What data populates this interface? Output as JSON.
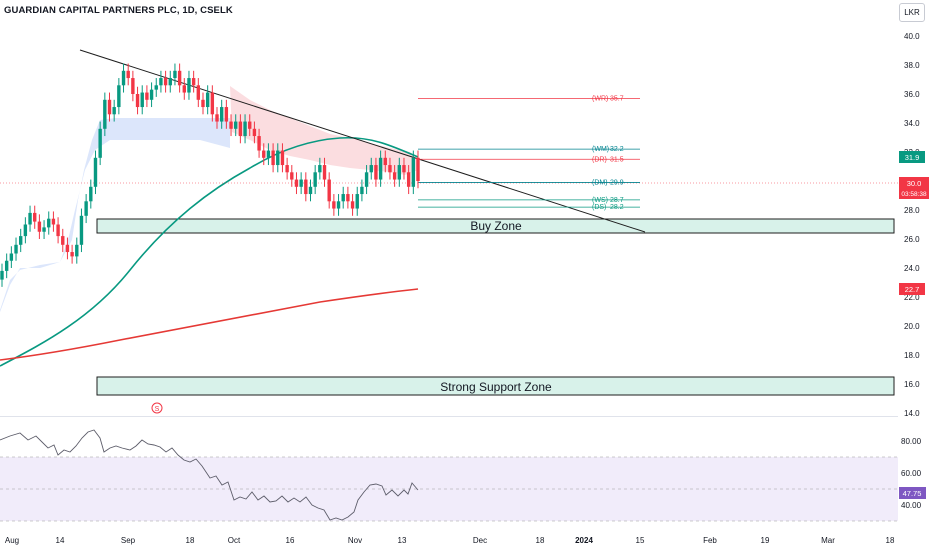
{
  "header": {
    "symbol_title": "GUARDIAN CAPITAL PARTNERS PLC, 1D, CSELK",
    "currency": "LKR"
  },
  "price_axis": {
    "ticks": [
      "40.0",
      "38.0",
      "36.0",
      "34.0",
      "32.0",
      "30.0",
      "28.0",
      "26.0",
      "24.0",
      "22.0",
      "20.0",
      "18.0",
      "16.0",
      "14.0"
    ],
    "last_price_badge": "31.9",
    "current_price_badge": "30.0",
    "countdown_badge": "03:58:38",
    "ma_badge": "22.7",
    "last_price_color": "#089981",
    "current_price_color": "#f23645",
    "ma_color": "#f23645"
  },
  "rsi_axis": {
    "ticks": [
      "80.00",
      "60.00",
      "40.00"
    ],
    "value_badge": "47.75",
    "badge_color": "#7e57c2"
  },
  "time_axis": {
    "ticks": [
      "Aug",
      "14",
      "Sep",
      "18",
      "Oct",
      "16",
      "Nov",
      "13",
      "Dec",
      "18",
      "2024",
      "15",
      "Feb",
      "19",
      "Mar",
      "18"
    ]
  },
  "zones": {
    "buy_zone": "Buy Zone",
    "support_zone": "Strong Support Zone",
    "fill_color": "#d8f2ea",
    "border_color": "#1e1e1e"
  },
  "levels": [
    {
      "tag": "(WR)",
      "value": "35.7",
      "color": "#f23645",
      "price": 35.7
    },
    {
      "tag": "(WM)",
      "value": "32.2",
      "color": "#00838f",
      "price": 32.2
    },
    {
      "tag": "(DR)",
      "value": "31.5",
      "color": "#f23645",
      "price": 31.5
    },
    {
      "tag": "(DM)",
      "value": "29.9",
      "color": "#00838f",
      "price": 29.9
    },
    {
      "tag": "(WS)",
      "value": "28.7",
      "color": "#089981",
      "price": 28.7
    },
    {
      "tag": "(DS)",
      "value": "28.2",
      "color": "#089981",
      "price": 28.2
    }
  ],
  "chart_markers": {
    "event_marker": "S",
    "small_marks": [
      "s",
      "s",
      "s",
      "s",
      "s",
      "s",
      "s",
      "s",
      "s",
      "s",
      "s",
      "s",
      "s"
    ]
  },
  "chart_data": {
    "type": "candlestick",
    "title": "GUARDIAN CAPITAL PARTNERS PLC, 1D, CSELK",
    "y_range": [
      14,
      40
    ],
    "indicators": [
      "SMA (green)",
      "SMA (red)",
      "Trendline",
      "RSI"
    ],
    "last_close": 30.0,
    "rsi_last": 47.75,
    "closes": [
      23.8,
      24.5,
      25.0,
      25.6,
      26.2,
      27.0,
      27.8,
      27.2,
      26.5,
      26.8,
      27.4,
      27.0,
      26.2,
      25.6,
      25.1,
      24.8,
      25.6,
      27.6,
      28.6,
      29.6,
      31.6,
      33.6,
      35.6,
      34.6,
      35.1,
      36.6,
      37.6,
      37.1,
      36.0,
      35.1,
      36.1,
      35.6,
      36.3,
      36.6,
      37.1,
      36.6,
      37.1,
      37.6,
      36.6,
      36.1,
      37.1,
      36.6,
      35.6,
      35.1,
      36.1,
      34.6,
      34.1,
      35.1,
      34.1,
      33.6,
      34.1,
      33.1,
      34.1,
      33.6,
      33.1,
      32.1,
      31.6,
      32.1,
      31.1,
      32.1,
      31.1,
      30.6,
      30.1,
      29.6,
      30.1,
      29.1,
      29.6,
      30.6,
      31.1,
      30.1,
      28.6,
      28.1,
      28.6,
      29.1,
      28.6,
      28.1,
      29.1,
      29.6,
      30.6,
      31.1,
      30.1,
      31.6,
      31.1,
      30.6,
      30.1,
      31.1,
      30.6,
      29.6,
      31.6,
      30.0
    ]
  }
}
